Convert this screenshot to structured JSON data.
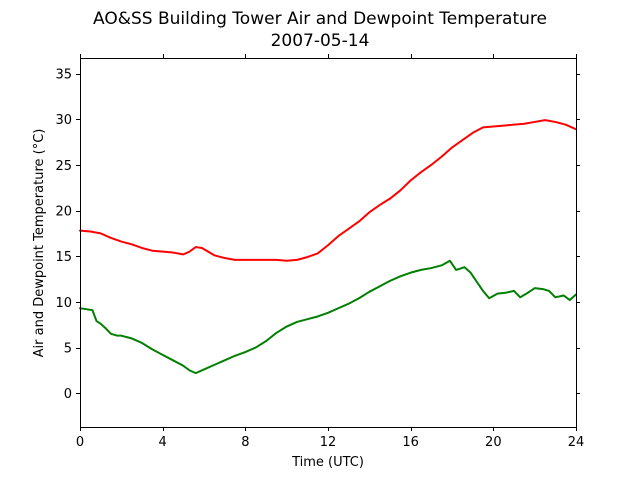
{
  "chart_data": {
    "type": "line",
    "title": "AO&SS Building Tower Air and Dewpoint Temperature",
    "subtitle": "2007-05-14",
    "xlabel": "Time (UTC)",
    "ylabel": "Air and Dewpoint Temperature (°C)",
    "xlim": [
      0,
      24
    ],
    "ylim": [
      -3.7,
      36.7
    ],
    "xticks": [
      0,
      4,
      8,
      12,
      16,
      20,
      24
    ],
    "yticks": [
      0,
      5,
      10,
      15,
      20,
      25,
      30,
      35
    ],
    "grid": false,
    "legend": "none",
    "series": [
      {
        "color": "#ff0000",
        "x": [
          0,
          0.5,
          1,
          1.5,
          2,
          2.5,
          3,
          3.5,
          4,
          4.5,
          5,
          5.3,
          5.6,
          5.9,
          6.2,
          6.5,
          7,
          7.5,
          8,
          8.5,
          9,
          9.5,
          10,
          10.5,
          11,
          11.5,
          12,
          12.5,
          13,
          13.5,
          14,
          14.5,
          15,
          15.5,
          16,
          16.5,
          17,
          17.5,
          18,
          18.5,
          19,
          19.5,
          20,
          20.5,
          21,
          21.5,
          22,
          22.5,
          23,
          23.5,
          24
        ],
        "y": [
          17.8,
          17.7,
          17.5,
          17.0,
          16.6,
          16.3,
          15.9,
          15.6,
          15.5,
          15.4,
          15.2,
          15.5,
          16.0,
          15.9,
          15.5,
          15.1,
          14.8,
          14.6,
          14.6,
          14.6,
          14.6,
          14.6,
          14.5,
          14.6,
          14.9,
          15.3,
          16.2,
          17.2,
          18.0,
          18.8,
          19.8,
          20.6,
          21.3,
          22.2,
          23.3,
          24.2,
          25.0,
          25.9,
          26.9,
          27.7,
          28.5,
          29.1,
          29.2,
          29.3,
          29.4,
          29.5,
          29.7,
          29.9,
          29.7,
          29.4,
          28.9
        ]
      },
      {
        "color": "#008000",
        "x": [
          0,
          0.3,
          0.6,
          0.8,
          1,
          1.2,
          1.5,
          1.8,
          2,
          2.5,
          3,
          3.5,
          4,
          4.5,
          5,
          5.3,
          5.6,
          6,
          6.5,
          7,
          7.5,
          8,
          8.5,
          9,
          9.5,
          10,
          10.5,
          11,
          11.5,
          12,
          12.5,
          13,
          13.5,
          14,
          14.5,
          15,
          15.5,
          16,
          16.5,
          17,
          17.5,
          17.9,
          18.2,
          18.6,
          18.9,
          19.2,
          19.5,
          19.8,
          20.2,
          20.6,
          21,
          21.3,
          21.6,
          22,
          22.4,
          22.7,
          23,
          23.4,
          23.7,
          24
        ],
        "y": [
          9.3,
          9.2,
          9.1,
          7.9,
          7.6,
          7.2,
          6.5,
          6.3,
          6.3,
          6.0,
          5.5,
          4.8,
          4.2,
          3.6,
          3.0,
          2.5,
          2.2,
          2.6,
          3.1,
          3.6,
          4.1,
          4.5,
          5.0,
          5.7,
          6.6,
          7.3,
          7.8,
          8.1,
          8.4,
          8.8,
          9.3,
          9.8,
          10.4,
          11.1,
          11.7,
          12.3,
          12.8,
          13.2,
          13.5,
          13.7,
          14.0,
          14.5,
          13.5,
          13.8,
          13.2,
          12.2,
          11.2,
          10.4,
          10.9,
          11.0,
          11.2,
          10.5,
          10.9,
          11.5,
          11.4,
          11.2,
          10.5,
          10.7,
          10.2,
          10.8
        ]
      }
    ]
  }
}
